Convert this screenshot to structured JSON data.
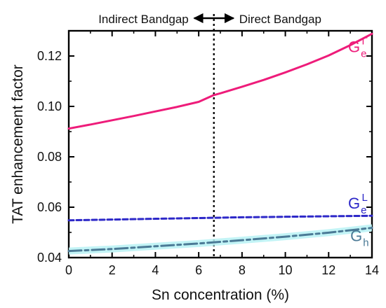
{
  "chart_data": {
    "type": "line",
    "title": "",
    "xlabel": "Sn concentration (%)",
    "ylabel": "TAT enhancement factor",
    "xlim": [
      0,
      14
    ],
    "ylim": [
      0.04,
      0.13
    ],
    "xticks": [
      0,
      2,
      4,
      6,
      8,
      10,
      12,
      14
    ],
    "yticks": [
      0.04,
      0.06,
      0.08,
      0.1,
      0.12
    ],
    "xtick_labels": [
      "0",
      "2",
      "4",
      "6",
      "8",
      "10",
      "12",
      "14"
    ],
    "ytick_labels": [
      "0.04",
      "0.06",
      "0.08",
      "0.10",
      "0.12"
    ],
    "grid": false,
    "transition": {
      "x": 6.7,
      "left_label": "Indirect Bandgap",
      "right_label": "Direct Bandgap",
      "line_style": "dotted",
      "color": "#000000"
    },
    "series": [
      {
        "name": "G_e^Γ",
        "label_main": "G",
        "label_sub": "e",
        "label_sup": "Γ",
        "label_anchor": [
          12.9,
          0.1215
        ],
        "color": "#ee1c7a",
        "line_style": "solid",
        "x": [
          0,
          1,
          2,
          3,
          4,
          5,
          6,
          6.7,
          7,
          8,
          9,
          10,
          11,
          12,
          13,
          14
        ],
        "y": [
          0.0912,
          0.0928,
          0.0945,
          0.0962,
          0.098,
          0.0998,
          0.1018,
          0.1045,
          0.1052,
          0.1078,
          0.1105,
          0.1135,
          0.1167,
          0.1202,
          0.1243,
          0.1288
        ]
      },
      {
        "name": "G_e^L",
        "label_main": "G",
        "label_sub": "e",
        "label_sup": "L",
        "label_anchor": [
          12.9,
          0.0595
        ],
        "color": "#2d28c8",
        "line_style": "dashed",
        "x": [
          0,
          2,
          4,
          6,
          8,
          10,
          12,
          14
        ],
        "y": [
          0.0548,
          0.0551,
          0.0554,
          0.0557,
          0.056,
          0.0562,
          0.0564,
          0.0566
        ]
      },
      {
        "name": "G_h",
        "label_main": "G",
        "label_sub": "h",
        "label_sup": "",
        "label_anchor": [
          13.0,
          0.0465
        ],
        "color": "#4b7a96",
        "band_color": "#b8f2f5",
        "line_style": "dashdot",
        "x": [
          0,
          2,
          4,
          6,
          8,
          10,
          12,
          14
        ],
        "y": [
          0.0426,
          0.0434,
          0.0445,
          0.0456,
          0.0469,
          0.0483,
          0.0499,
          0.0518
        ]
      }
    ]
  }
}
